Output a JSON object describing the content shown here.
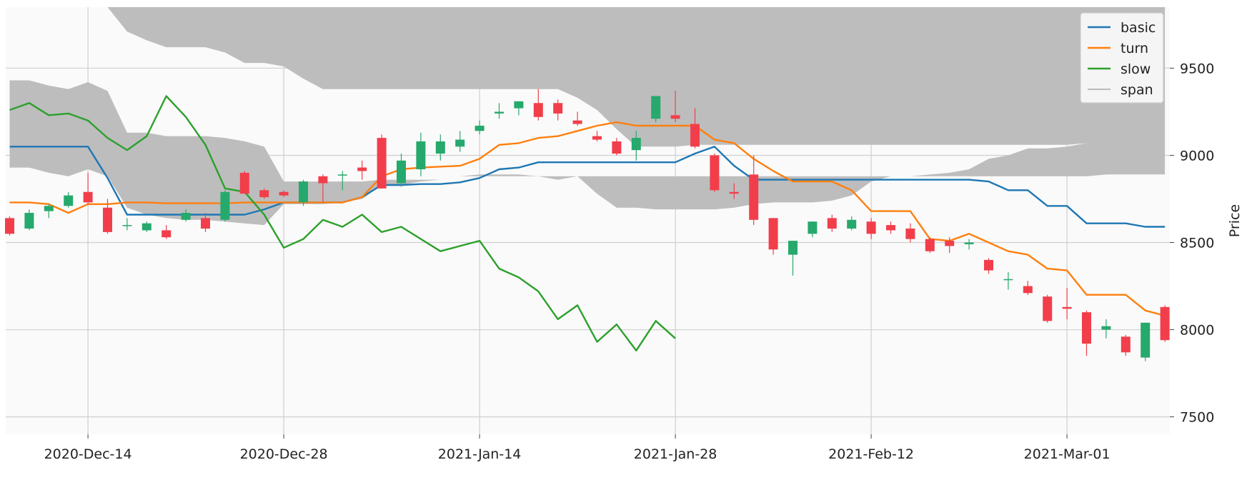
{
  "chart_data": {
    "type": "candlestick",
    "ylabel": "Price",
    "ylim": [
      7400,
      9850
    ],
    "grid": true,
    "legend_position": "top-right",
    "x_tick_labels": [
      {
        "label": "2020-Dec-14",
        "index": 4
      },
      {
        "label": "2020-Dec-28",
        "index": 14
      },
      {
        "label": "2021-Jan-14",
        "index": 24
      },
      {
        "label": "2021-Jan-28",
        "index": 34
      },
      {
        "label": "2021-Feb-12",
        "index": 44
      },
      {
        "label": "2021-Mar-01",
        "index": 54
      }
    ],
    "y_ticks": [
      7500,
      8000,
      8500,
      9000,
      9500
    ],
    "colors": {
      "up": "#26a96c",
      "down": "#f23e4b",
      "cloud": "#bdbdbd",
      "basic": "#1f77b4",
      "turn": "#ff7f0e",
      "slow": "#2ca02c",
      "span": "#999999",
      "plot_bg": "#fafafa",
      "grid": "#d0d0d0"
    },
    "legend": [
      "basic",
      "turn",
      "slow",
      "span"
    ],
    "candles": [
      [
        8640,
        8650,
        8540,
        8550
      ],
      [
        8580,
        8690,
        8570,
        8670
      ],
      [
        8680,
        8720,
        8640,
        8710
      ],
      [
        8710,
        8790,
        8700,
        8770
      ],
      [
        8790,
        8900,
        8720,
        8730
      ],
      [
        8700,
        8750,
        8550,
        8560
      ],
      [
        8600,
        8640,
        8570,
        8600
      ],
      [
        8570,
        8620,
        8560,
        8610
      ],
      [
        8570,
        8600,
        8520,
        8530
      ],
      [
        8630,
        8690,
        8620,
        8670
      ],
      [
        8640,
        8670,
        8560,
        8580
      ],
      [
        8630,
        8800,
        8620,
        8790
      ],
      [
        8900,
        8910,
        8780,
        8780
      ],
      [
        8800,
        8810,
        8750,
        8760
      ],
      [
        8790,
        8800,
        8760,
        8770
      ],
      [
        8730,
        8860,
        8710,
        8850
      ],
      [
        8880,
        8890,
        8730,
        8840
      ],
      [
        8890,
        8910,
        8800,
        8890
      ],
      [
        8930,
        8970,
        8860,
        8910
      ],
      [
        9100,
        9120,
        8810,
        8810
      ],
      [
        8840,
        9010,
        8820,
        8970
      ],
      [
        8920,
        9130,
        8880,
        9080
      ],
      [
        9010,
        9120,
        8970,
        9080
      ],
      [
        9050,
        9140,
        9020,
        9090
      ],
      [
        9140,
        9200,
        9120,
        9170
      ],
      [
        9240,
        9300,
        9210,
        9250
      ],
      [
        9270,
        9300,
        9230,
        9310
      ],
      [
        9300,
        9380,
        9200,
        9220
      ],
      [
        9300,
        9320,
        9200,
        9240
      ],
      [
        9200,
        9250,
        9170,
        9180
      ],
      [
        9110,
        9140,
        9080,
        9090
      ],
      [
        9080,
        9100,
        9000,
        9010
      ],
      [
        9030,
        9140,
        8970,
        9100
      ],
      [
        9210,
        9340,
        9190,
        9340
      ],
      [
        9230,
        9370,
        9190,
        9210
      ],
      [
        9180,
        9270,
        9040,
        9050
      ],
      [
        9000,
        9010,
        8790,
        8800
      ],
      [
        8790,
        8840,
        8750,
        8780
      ],
      [
        8890,
        9000,
        8600,
        8630
      ],
      [
        8640,
        8640,
        8430,
        8460
      ],
      [
        8430,
        8510,
        8310,
        8510
      ],
      [
        8550,
        8620,
        8530,
        8620
      ],
      [
        8640,
        8660,
        8560,
        8580
      ],
      [
        8580,
        8650,
        8570,
        8630
      ],
      [
        8620,
        8640,
        8520,
        8550
      ],
      [
        8600,
        8620,
        8550,
        8570
      ],
      [
        8580,
        8610,
        8500,
        8520
      ],
      [
        8520,
        8530,
        8440,
        8450
      ],
      [
        8510,
        8530,
        8440,
        8480
      ],
      [
        8490,
        8520,
        8460,
        8500
      ],
      [
        8400,
        8410,
        8320,
        8340
      ],
      [
        8290,
        8330,
        8230,
        8290
      ],
      [
        8250,
        8280,
        8200,
        8210
      ],
      [
        8190,
        8200,
        8040,
        8050
      ],
      [
        8130,
        8240,
        8060,
        8120
      ],
      [
        8100,
        8110,
        7850,
        7920
      ],
      [
        8000,
        8060,
        7950,
        8020
      ],
      [
        7960,
        7970,
        7850,
        7870
      ],
      [
        7840,
        8040,
        7820,
        8040
      ],
      [
        8130,
        8140,
        7930,
        7940
      ]
    ],
    "series": [
      {
        "name": "basic",
        "values": [
          9050,
          9050,
          9050,
          9050,
          9050,
          8870,
          8660,
          8660,
          8660,
          8660,
          8660,
          8660,
          8660,
          8690,
          8730,
          8730,
          8730,
          8730,
          8760,
          8830,
          8830,
          8835,
          8835,
          8845,
          8870,
          8920,
          8930,
          8960,
          8960,
          8960,
          8960,
          8960,
          8960,
          8960,
          8960,
          9010,
          9050,
          8940,
          8860,
          8860,
          8860,
          8860,
          8860,
          8860,
          8860,
          8860,
          8860,
          8860,
          8860,
          8860,
          8850,
          8800,
          8800,
          8710,
          8710,
          8610,
          8610,
          8610,
          8590,
          8590
        ]
      },
      {
        "name": "turn",
        "values": [
          8730,
          8730,
          8720,
          8670,
          8720,
          8720,
          8730,
          8730,
          8725,
          8725,
          8725,
          8725,
          8730,
          8730,
          8730,
          8730,
          8730,
          8730,
          8760,
          8880,
          8920,
          8930,
          8935,
          8940,
          8980,
          9060,
          9070,
          9100,
          9110,
          9140,
          9170,
          9190,
          9170,
          9170,
          9170,
          9170,
          9090,
          9070,
          8980,
          8910,
          8850,
          8850,
          8850,
          8800,
          8680,
          8680,
          8680,
          8520,
          8510,
          8550,
          8500,
          8450,
          8430,
          8350,
          8340,
          8200,
          8200,
          8200,
          8110,
          8080
        ]
      },
      {
        "name": "slow",
        "values": [
          9260,
          9300,
          9230,
          9240,
          9200,
          9100,
          9030,
          9110,
          9340,
          9220,
          9060,
          8810,
          8790,
          8660,
          8470,
          8520,
          8630,
          8590,
          8660,
          8560,
          8590,
          8520,
          8450,
          8480,
          8510,
          8350,
          8300,
          8220,
          8060,
          8140,
          7930,
          8030,
          7880,
          8050,
          7950
        ]
      }
    ],
    "span": {
      "a": [
        8930,
        8930,
        8900,
        8880,
        8920,
        8880,
        8700,
        8660,
        8640,
        8630,
        8630,
        8620,
        8610,
        8600,
        8720,
        8720,
        8720,
        8730,
        8750,
        8830,
        8830,
        8850,
        8860,
        8880,
        8890,
        8890,
        8890,
        8880,
        8860,
        8880,
        8780,
        8700,
        8700,
        8690,
        8690,
        8690,
        8690,
        8700,
        8720,
        8730,
        8730,
        8730,
        8740,
        8770,
        8850,
        8880,
        8880,
        8890,
        8900,
        8920,
        8980,
        9000,
        9040,
        9040,
        9050,
        9070,
        9080,
        9070,
        9070,
        9070
      ],
      "b": [
        9430,
        9430,
        9400,
        9380,
        9420,
        9370,
        9130,
        9130,
        9110,
        9110,
        9110,
        9100,
        9080,
        9050,
        8850,
        8850,
        8850,
        8850,
        8850,
        8860,
        8860,
        8860,
        8860,
        8880,
        8880,
        8880,
        8880,
        8880,
        8880,
        8880,
        8880,
        8880,
        8880,
        8880,
        8880,
        8880,
        8880,
        8880,
        8880,
        8880,
        8880,
        8880,
        8880,
        8880,
        8880,
        8880,
        8880,
        8880,
        8880,
        8880,
        8880,
        8880,
        8880,
        8880,
        8880,
        8880,
        8890,
        8890,
        8890,
        8890
      ],
      "c": [
        9850,
        9850,
        9850,
        9850,
        9850,
        9850,
        9710,
        9660,
        9620,
        9620,
        9620,
        9590,
        9530,
        9530,
        9510,
        9440,
        9380,
        9380,
        9380,
        9380,
        9380,
        9380,
        9380,
        9380,
        9380,
        9380,
        9380,
        9380,
        9380,
        9330,
        9260,
        9150,
        9050,
        9050,
        9050,
        9060,
        9060,
        9060,
        9060,
        9060,
        9060,
        9060,
        9060,
        9060,
        9060,
        9060,
        9060,
        9060,
        9060,
        9060,
        9060,
        9060,
        9060,
        9060,
        9060,
        9070,
        9060,
        9060,
        9060,
        9060
      ],
      "d": [
        9850,
        9850,
        9850,
        9850,
        9850,
        9850,
        9850,
        9850,
        9850,
        9850,
        9850,
        9850,
        9850,
        9850,
        9850,
        9850,
        9850,
        9850,
        9850,
        9850,
        9850,
        9850,
        9850,
        9850,
        9850,
        9850,
        9850,
        9850,
        9850,
        9850,
        9850,
        9850,
        9850,
        9850,
        9850,
        9850,
        9850,
        9850,
        9850,
        9850,
        9850,
        9850,
        9850,
        9850,
        9850,
        9850,
        9850,
        9850,
        9850,
        9850,
        9850,
        9850,
        9850,
        9850,
        9850,
        9850,
        9850,
        9850,
        9850,
        9850
      ]
    }
  }
}
